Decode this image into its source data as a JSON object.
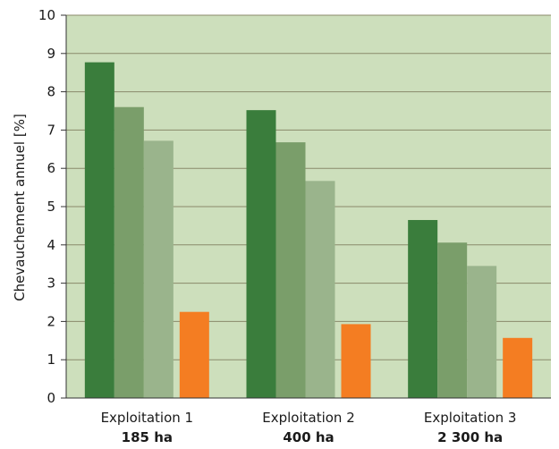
{
  "chart_data": {
    "type": "bar",
    "ylabel": "Chevauchement annuel [%]",
    "ylim": [
      0,
      10
    ],
    "yticks": [
      0,
      1,
      2,
      3,
      4,
      5,
      6,
      7,
      8,
      9,
      10
    ],
    "grid": true,
    "categories": [
      "Exploitation 1",
      "Exploitation 2",
      "Exploitation 3"
    ],
    "category_sublabels": [
      "185 ha",
      "400 ha",
      "2 300 ha"
    ],
    "series": [
      {
        "color": "#3a7d3c",
        "values": [
          8.77,
          7.52,
          4.65
        ]
      },
      {
        "color": "#7a9e6a",
        "values": [
          7.6,
          6.68,
          4.06
        ]
      },
      {
        "color": "#9ab48c",
        "values": [
          6.72,
          5.67,
          3.45
        ]
      },
      {
        "color": "#f47d22",
        "values": [
          2.25,
          1.93,
          1.57
        ]
      }
    ],
    "plot_background": "#cddfbc",
    "grid_color": "#8a8a6a"
  }
}
